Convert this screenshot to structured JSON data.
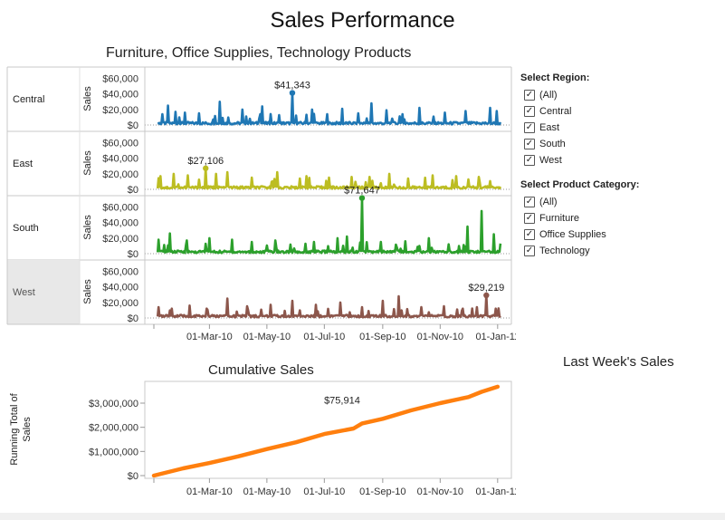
{
  "dashboard": {
    "title": "Sales Performance",
    "top_chart_title": "Furniture, Office Supplies, Technology Products",
    "cumulative_title": "Cumulative Sales",
    "last_week_title": "Last Week's Sales"
  },
  "filters": {
    "region": {
      "title": "Select Region:",
      "options": [
        "(All)",
        "Central",
        "East",
        "South",
        "West"
      ],
      "checked": [
        true,
        true,
        true,
        true,
        true
      ]
    },
    "category": {
      "title": "Select Product Category:",
      "options": [
        "(All)",
        "Furniture",
        "Office Supplies",
        "Technology"
      ],
      "checked": [
        true,
        true,
        true,
        true
      ]
    }
  },
  "chart_data": [
    {
      "type": "line",
      "title": "Furniture, Office Supplies, Technology Products",
      "ylabel": "Sales",
      "ylim": [
        0,
        70000
      ],
      "y_ticks": [
        "$60,000",
        "$40,000",
        "$20,000",
        "$0"
      ],
      "y_tick_values": [
        60000,
        40000,
        20000,
        0
      ],
      "x_ticks": [
        "01-Mar-10",
        "01-May-10",
        "01-Jul-10",
        "01-Sep-10",
        "01-Nov-10",
        "01-Jan-11"
      ],
      "x_tick_dates": [
        "2010-03-01",
        "2010-05-01",
        "2010-07-01",
        "2010-09-01",
        "2010-11-01",
        "2011-01-01"
      ],
      "x_range": [
        "2010-01-01",
        "2011-01-06"
      ],
      "grid": false,
      "series": [
        {
          "name": "Central",
          "color": "#1f77b4",
          "highlighted": false,
          "max_point": {
            "date": "2010-05-28",
            "value": 41343,
            "label": "$41,343"
          },
          "peaks": [
            [
              "2010-01-10",
              14000
            ],
            [
              "2010-01-16",
              25000
            ],
            [
              "2010-01-24",
              17000
            ],
            [
              "2010-02-03",
              16000
            ],
            [
              "2010-02-18",
              15000
            ],
            [
              "2010-03-12",
              30000
            ],
            [
              "2010-04-05",
              20000
            ],
            [
              "2010-04-26",
              24000
            ],
            [
              "2010-05-28",
              41343
            ],
            [
              "2010-06-18",
              20000
            ],
            [
              "2010-07-20",
              21000
            ],
            [
              "2010-08-06",
              15000
            ],
            [
              "2010-08-20",
              28000
            ],
            [
              "2010-09-05",
              19000
            ],
            [
              "2010-09-22",
              14000
            ],
            [
              "2010-10-10",
              22000
            ],
            [
              "2010-11-06",
              16000
            ],
            [
              "2010-11-28",
              18000
            ],
            [
              "2010-12-24",
              22000
            ],
            [
              "2010-12-31",
              18000
            ]
          ]
        },
        {
          "name": "East",
          "color": "#bcbd22",
          "highlighted": false,
          "max_point": {
            "date": "2010-02-25",
            "value": 27106,
            "label": "$27,106"
          },
          "peaks": [
            [
              "2010-01-08",
              17000
            ],
            [
              "2010-01-22",
              20000
            ],
            [
              "2010-02-06",
              18000
            ],
            [
              "2010-02-25",
              27106
            ],
            [
              "2010-03-08",
              20000
            ],
            [
              "2010-03-20",
              22000
            ],
            [
              "2010-04-15",
              15000
            ],
            [
              "2010-05-12",
              22000
            ],
            [
              "2010-06-12",
              17000
            ],
            [
              "2010-07-06",
              15000
            ],
            [
              "2010-07-30",
              16000
            ],
            [
              "2010-08-18",
              16000
            ],
            [
              "2010-09-08",
              20000
            ],
            [
              "2010-09-28",
              14000
            ],
            [
              "2010-10-24",
              18000
            ],
            [
              "2010-11-18",
              17000
            ],
            [
              "2010-12-12",
              16000
            ]
          ]
        },
        {
          "name": "South",
          "color": "#2ca02c",
          "highlighted": false,
          "max_point": {
            "date": "2010-08-10",
            "value": 71647,
            "label": "$71,647"
          },
          "peaks": [
            [
              "2010-01-06",
              18000
            ],
            [
              "2010-01-18",
              26000
            ],
            [
              "2010-02-05",
              17000
            ],
            [
              "2010-03-01",
              20000
            ],
            [
              "2010-03-25",
              18000
            ],
            [
              "2010-04-15",
              15000
            ],
            [
              "2010-05-10",
              17000
            ],
            [
              "2010-06-20",
              15000
            ],
            [
              "2010-07-15",
              20000
            ],
            [
              "2010-07-25",
              22000
            ],
            [
              "2010-08-10",
              71647
            ],
            [
              "2010-08-30",
              15000
            ],
            [
              "2010-09-25",
              16000
            ],
            [
              "2010-10-20",
              20000
            ],
            [
              "2010-11-10",
              12000
            ],
            [
              "2010-11-30",
              35000
            ],
            [
              "2010-12-15",
              55000
            ],
            [
              "2010-12-28",
              25000
            ]
          ]
        },
        {
          "name": "West",
          "color": "#8c564b",
          "highlighted": true,
          "max_point": {
            "date": "2010-12-20",
            "value": 29219,
            "label": "$29,219"
          },
          "peaks": [
            [
              "2010-01-06",
              14000
            ],
            [
              "2010-01-20",
              12000
            ],
            [
              "2010-02-08",
              16000
            ],
            [
              "2010-02-26",
              12000
            ],
            [
              "2010-03-20",
              25000
            ],
            [
              "2010-04-10",
              15000
            ],
            [
              "2010-05-05",
              17000
            ],
            [
              "2010-05-28",
              22000
            ],
            [
              "2010-06-22",
              17000
            ],
            [
              "2010-07-18",
              20000
            ],
            [
              "2010-08-10",
              14000
            ],
            [
              "2010-09-01",
              22000
            ],
            [
              "2010-09-18",
              28000
            ],
            [
              "2010-10-12",
              14000
            ],
            [
              "2010-11-05",
              15000
            ],
            [
              "2010-11-25",
              12000
            ],
            [
              "2010-12-10",
              14000
            ],
            [
              "2010-12-20",
              29219
            ],
            [
              "2010-12-30",
              12000
            ]
          ]
        }
      ]
    },
    {
      "type": "line",
      "title": "Cumulative Sales",
      "ylabel": "Running Total of Sales",
      "ylim": [
        0,
        3900000
      ],
      "y_ticks": [
        "$3,000,000",
        "$2,000,000",
        "$1,000,000",
        "$0"
      ],
      "y_tick_values": [
        3000000,
        2000000,
        1000000,
        0
      ],
      "x_ticks": [
        "01-Mar-10",
        "01-May-10",
        "01-Jul-10",
        "01-Sep-10",
        "01-Nov-10",
        "01-Jan-11"
      ],
      "x_tick_dates": [
        "2010-03-01",
        "2010-05-01",
        "2010-07-01",
        "2010-09-01",
        "2010-11-01",
        "2011-01-01"
      ],
      "x_range": [
        "2010-01-01",
        "2011-01-06"
      ],
      "grid": false,
      "annotation": {
        "date": "2010-08-10",
        "label": "$75,914"
      },
      "series": [
        {
          "name": "",
          "color": "#ff7f0e",
          "points": [
            [
              "2010-01-01",
              0
            ],
            [
              "2010-02-01",
              300000
            ],
            [
              "2010-03-01",
              520000
            ],
            [
              "2010-04-01",
              800000
            ],
            [
              "2010-05-01",
              1100000
            ],
            [
              "2010-06-01",
              1380000
            ],
            [
              "2010-07-01",
              1720000
            ],
            [
              "2010-08-01",
              1950000
            ],
            [
              "2010-08-10",
              2160000
            ],
            [
              "2010-09-01",
              2350000
            ],
            [
              "2010-10-01",
              2700000
            ],
            [
              "2010-11-01",
              3000000
            ],
            [
              "2010-12-01",
              3250000
            ],
            [
              "2010-12-15",
              3470000
            ],
            [
              "2011-01-01",
              3680000
            ]
          ]
        }
      ]
    }
  ]
}
